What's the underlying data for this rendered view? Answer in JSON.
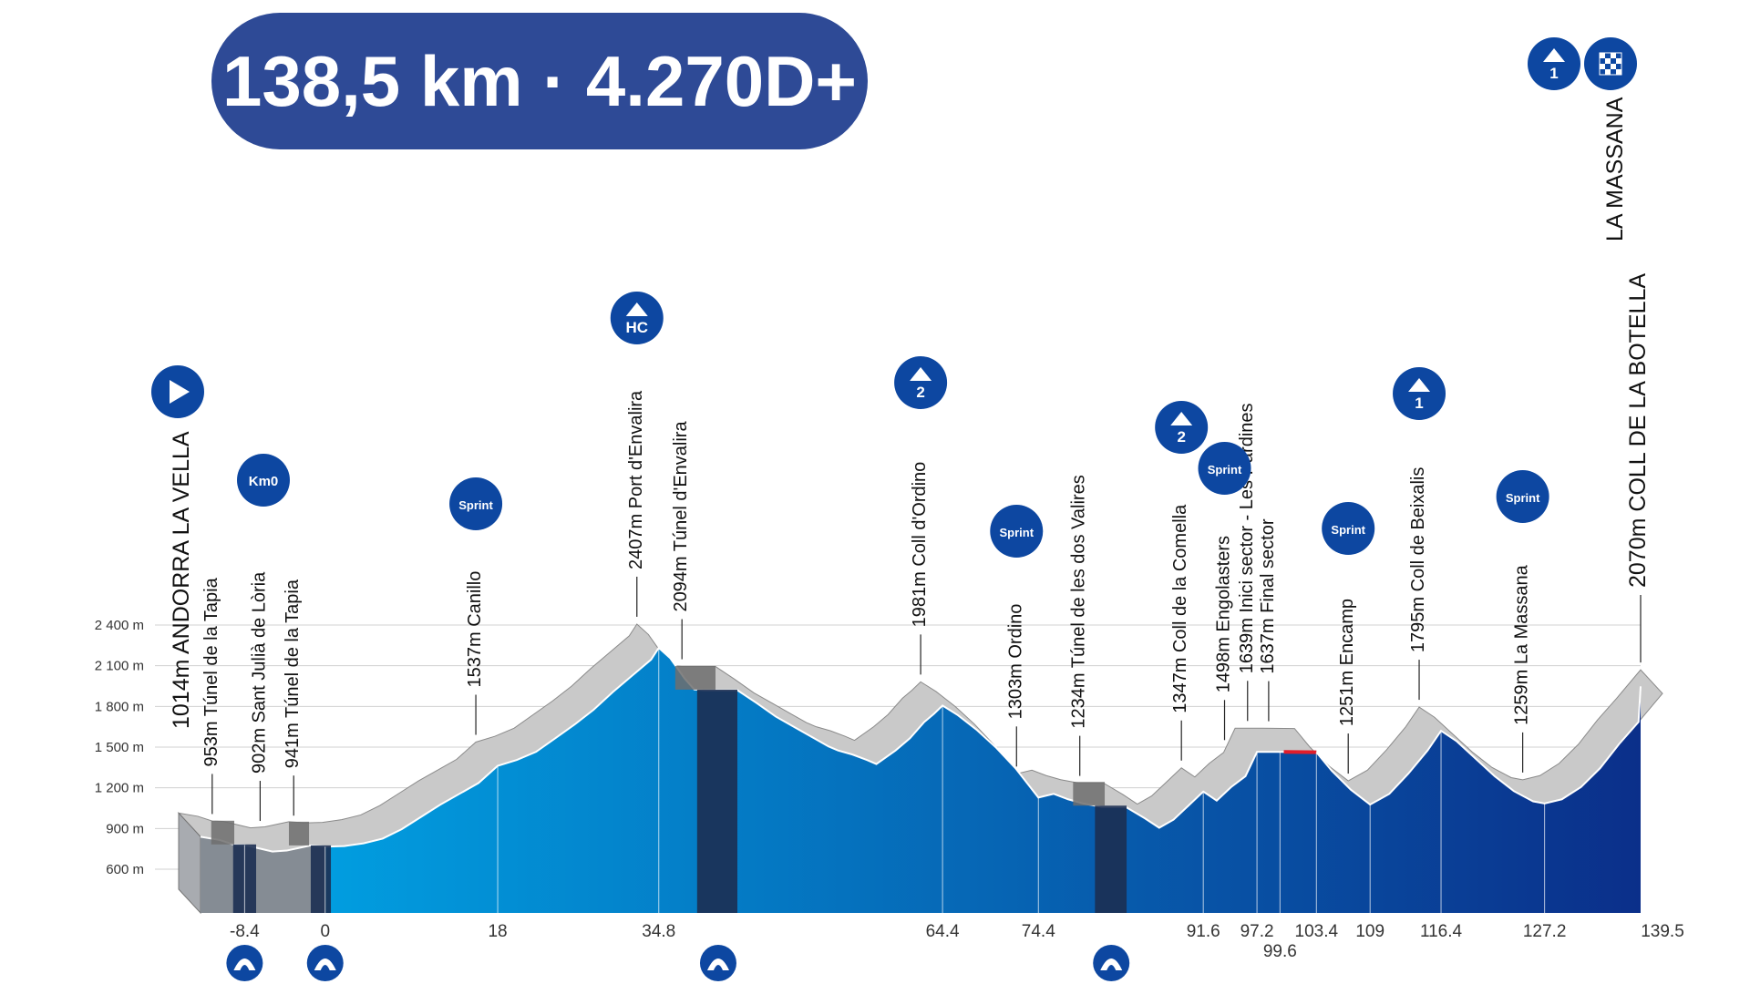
{
  "header": {
    "title": "138,5 km · 4.270D+"
  },
  "chart_data": {
    "type": "area",
    "title": "138,5 km · 4.270D+",
    "xlabel": "",
    "ylabel": "",
    "y_ticks": [
      "2 400 m",
      "2 100 m",
      "1 800 m",
      "1 500 m",
      "1 200 m",
      "900 m",
      "600 m"
    ],
    "y_tick_values": [
      2400,
      2100,
      1800,
      1500,
      1200,
      900,
      600
    ],
    "ylim": [
      300,
      2900
    ],
    "xlim": [
      -13,
      139.5
    ],
    "grid": true,
    "x_ticks": [
      {
        "value": -8.4,
        "label": "-8.4"
      },
      {
        "value": 0,
        "label": "0"
      },
      {
        "value": 18,
        "label": "18"
      },
      {
        "value": 34.8,
        "label": "34.8"
      },
      {
        "value": 64.4,
        "label": "64.4"
      },
      {
        "value": 74.4,
        "label": "74.4"
      },
      {
        "value": 91.6,
        "label": "91.6"
      },
      {
        "value": 97.2,
        "label": "97.2"
      },
      {
        "value": 99.6,
        "label": "99.6"
      },
      {
        "value": 103.4,
        "label": "103.4"
      },
      {
        "value": 109,
        "label": "109"
      },
      {
        "value": 116.4,
        "label": "116.4"
      },
      {
        "value": 127.2,
        "label": "127.2"
      },
      {
        "value": 139.5,
        "label": "139.5"
      }
    ],
    "profile": [
      [
        -13,
        1014
      ],
      [
        -11,
        990
      ],
      [
        -9.5,
        955
      ],
      [
        -8.4,
        953
      ],
      [
        -7,
        930
      ],
      [
        -5.5,
        905
      ],
      [
        -4,
        912
      ],
      [
        -2.5,
        935
      ],
      [
        -1.5,
        950
      ],
      [
        -0.5,
        945
      ],
      [
        0,
        941
      ],
      [
        2,
        945
      ],
      [
        4,
        965
      ],
      [
        6,
        1000
      ],
      [
        8,
        1070
      ],
      [
        10,
        1160
      ],
      [
        12,
        1250
      ],
      [
        14,
        1330
      ],
      [
        16,
        1410
      ],
      [
        18,
        1537
      ],
      [
        20,
        1580
      ],
      [
        22,
        1640
      ],
      [
        24,
        1740
      ],
      [
        26,
        1840
      ],
      [
        28,
        1950
      ],
      [
        30,
        2080
      ],
      [
        32,
        2200
      ],
      [
        34,
        2320
      ],
      [
        34.8,
        2407
      ],
      [
        36,
        2330
      ],
      [
        37.5,
        2180
      ],
      [
        38.5,
        2100
      ],
      [
        39.5,
        2094
      ],
      [
        43,
        2094
      ],
      [
        45,
        2000
      ],
      [
        47,
        1900
      ],
      [
        49,
        1820
      ],
      [
        51,
        1740
      ],
      [
        52.5,
        1680
      ],
      [
        53.5,
        1650
      ],
      [
        55,
        1620
      ],
      [
        56.5,
        1580
      ],
      [
        57.5,
        1550
      ],
      [
        59.5,
        1650
      ],
      [
        61,
        1740
      ],
      [
        62.5,
        1860
      ],
      [
        63.5,
        1920
      ],
      [
        64.4,
        1981
      ],
      [
        66,
        1910
      ],
      [
        68,
        1800
      ],
      [
        70,
        1670
      ],
      [
        72,
        1520
      ],
      [
        74.4,
        1303
      ],
      [
        76,
        1330
      ],
      [
        77.5,
        1290
      ],
      [
        79,
        1260
      ],
      [
        81,
        1234
      ],
      [
        83.5,
        1234
      ],
      [
        85.5,
        1150
      ],
      [
        87,
        1080
      ],
      [
        88.5,
        1140
      ],
      [
        90,
        1240
      ],
      [
        91.6,
        1347
      ],
      [
        93,
        1280
      ],
      [
        94.5,
        1380
      ],
      [
        96,
        1460
      ],
      [
        97.2,
        1639
      ],
      [
        100,
        1639
      ],
      [
        103.4,
        1637
      ],
      [
        105,
        1500
      ],
      [
        107,
        1360
      ],
      [
        109,
        1251
      ],
      [
        111,
        1330
      ],
      [
        113,
        1480
      ],
      [
        115,
        1650
      ],
      [
        116.4,
        1795
      ],
      [
        118,
        1720
      ],
      [
        120,
        1590
      ],
      [
        122,
        1460
      ],
      [
        124,
        1350
      ],
      [
        126,
        1275
      ],
      [
        127.2,
        1259
      ],
      [
        129,
        1290
      ],
      [
        131,
        1380
      ],
      [
        133,
        1520
      ],
      [
        135,
        1700
      ],
      [
        137,
        1860
      ],
      [
        139.5,
        2070
      ]
    ],
    "tunnels": [
      [
        -9.6,
        -7.2
      ],
      [
        -1.5,
        0.6
      ],
      [
        38.8,
        43
      ],
      [
        80.3,
        83.6
      ]
    ],
    "points": [
      {
        "km": -13,
        "alt": 1014,
        "label": "1014m ANDORRA LA VELLA",
        "badge": "start",
        "big": true
      },
      {
        "km": -9.5,
        "alt": 953,
        "label": "953m Túnel de la Tapia"
      },
      {
        "km": -4.5,
        "alt": 902,
        "label": "902m Sant Julià de Lòria",
        "badge": "kmo",
        "badge_text": "Km0"
      },
      {
        "km": -1.0,
        "alt": 941,
        "label": "941m Túnel de la Tapia"
      },
      {
        "km": 18,
        "alt": 1537,
        "label": "1537m Canillo",
        "badge": "sprint",
        "badge_text": "Sprint"
      },
      {
        "km": 34.8,
        "alt": 2407,
        "label": "2407m Port d'Envalira",
        "badge": "climb",
        "badge_text": "HC"
      },
      {
        "km": 39.5,
        "alt": 2094,
        "label": "2094m Túnel d'Envalira"
      },
      {
        "km": 64.4,
        "alt": 1981,
        "label": "1981m Coll d'Ordino",
        "badge": "climb",
        "badge_text": "2"
      },
      {
        "km": 74.4,
        "alt": 1303,
        "label": "1303m Ordino",
        "badge": "sprint",
        "badge_text": "Sprint"
      },
      {
        "km": 81,
        "alt": 1234,
        "label": "1234m Túnel de les dos Valires"
      },
      {
        "km": 91.6,
        "alt": 1347,
        "label": "1347m Coll de la Comella",
        "badge": "climb",
        "badge_text": "2"
      },
      {
        "km": 96.1,
        "alt": 1498,
        "label": "1498m Engolasters",
        "badge": "sprint",
        "badge_text": "Sprint"
      },
      {
        "km": 98.5,
        "alt": 1639,
        "label": "1639m Inici sector - Les Pardines"
      },
      {
        "km": 100.7,
        "alt": 1637,
        "label": "1637m Final sector"
      },
      {
        "km": 109,
        "alt": 1251,
        "label": "1251m Encamp",
        "badge": "sprint",
        "badge_text": "Sprint"
      },
      {
        "km": 116.4,
        "alt": 1795,
        "label": "1795m Coll de Beixalis",
        "badge": "climb",
        "badge_text": "1"
      },
      {
        "km": 127.2,
        "alt": 1259,
        "label": "1259m La Massana",
        "badge": "sprint",
        "badge_text": "Sprint"
      },
      {
        "km": 139.5,
        "alt": 2070,
        "label": "2070m COLL DE LA BOTELLA",
        "big": true
      }
    ],
    "finish_label": "LA MASSANA",
    "finish_badges": [
      {
        "type": "climb",
        "badge_text": "1"
      },
      {
        "type": "finish"
      }
    ],
    "tunnel_icons_km": [
      -8.4,
      0,
      41,
      82
    ],
    "colors": {
      "badge": "#0d47a1",
      "pill": "#2e4a96",
      "road_grey": "#c9c9c9",
      "start_fill": "#00a8e8",
      "end_fill": "#0b2f8a",
      "tunnel": "#1c2f52",
      "sector": "#e11d2a"
    }
  }
}
